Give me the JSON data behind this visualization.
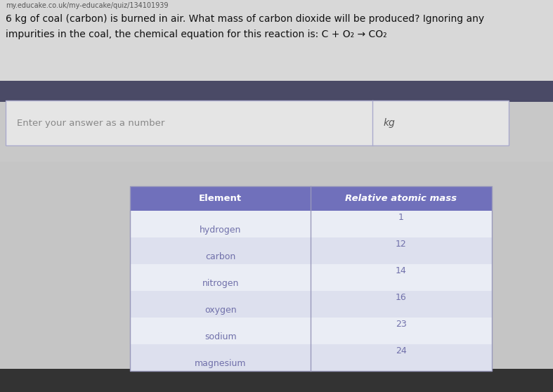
{
  "url_text": "my.educake.co.uk/my-educake/quiz/134101939",
  "question_line1": "6 kg of coal (carbon) is burned in air. What mass of carbon dioxide will be produced? Ignoring any",
  "question_line2": "impurities in the coal, the chemical equation for this reaction is: C + O₂ → CO₂",
  "input_label": "Enter your answer as a number",
  "input_unit": "kg",
  "table_header": [
    "Element",
    "Relative atomic mass"
  ],
  "table_rows": [
    [
      "hydrogen",
      "1"
    ],
    [
      "carbon",
      "12"
    ],
    [
      "nitrogen",
      "14"
    ],
    [
      "oxygen",
      "16"
    ],
    [
      "sodium",
      "23"
    ],
    [
      "magnesium",
      "24"
    ]
  ],
  "bg_color": "#c5c5c5",
  "top_bg_color": "#e8e8e8",
  "header_row_color": "#7070bb",
  "header_text_color": "#ffffff",
  "row_color_light": "#dde0ee",
  "row_color_lighter": "#eaedf5",
  "table_text_color": "#7070aa",
  "input_box_color": "#e8e8e8",
  "input_border_color": "#aaaacc",
  "dark_bar_color": "#4a4a66",
  "url_color": "#555555",
  "question_color": "#111111",
  "kg_color": "#555555"
}
